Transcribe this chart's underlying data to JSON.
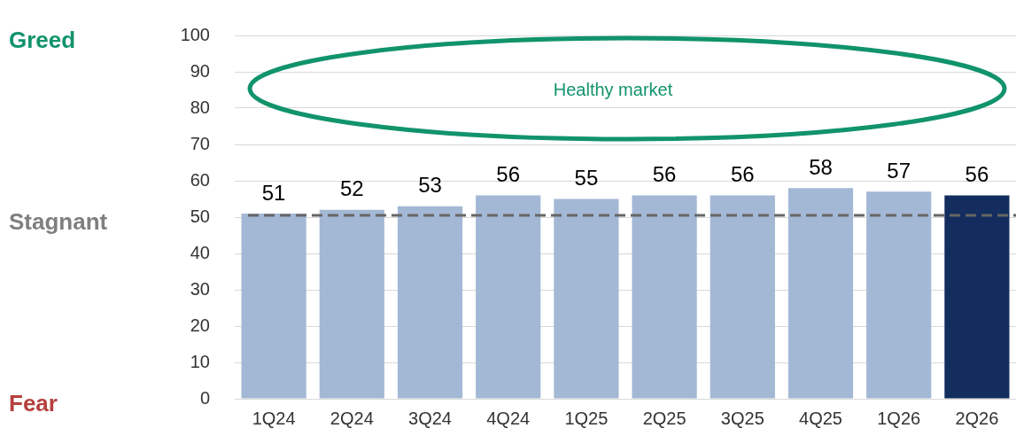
{
  "chart_data": {
    "type": "bar",
    "categories": [
      "1Q24",
      "2Q24",
      "3Q24",
      "4Q24",
      "1Q25",
      "2Q25",
      "3Q25",
      "4Q25",
      "1Q26",
      "2Q26"
    ],
    "values": [
      51,
      52,
      53,
      56,
      55,
      56,
      56,
      58,
      57,
      56
    ],
    "colors": [
      "#a3b8d5",
      "#a3b8d5",
      "#a3b8d5",
      "#a3b8d5",
      "#a3b8d5",
      "#a3b8d5",
      "#a3b8d5",
      "#a3b8d5",
      "#a3b8d5",
      "#122d5e"
    ],
    "ylim": [
      0,
      100
    ],
    "yticks": [
      0,
      10,
      20,
      30,
      40,
      50,
      60,
      70,
      80,
      90,
      100
    ],
    "grid": "y",
    "data_labels": true,
    "legend": false,
    "ref_lines": [
      {
        "axis": "y",
        "value": 50.5,
        "color": "#666666",
        "line_style": "dashed"
      }
    ],
    "annotations": [
      "Healthy market",
      "Greed",
      "Stagnant",
      "Fear"
    ]
  }
}
